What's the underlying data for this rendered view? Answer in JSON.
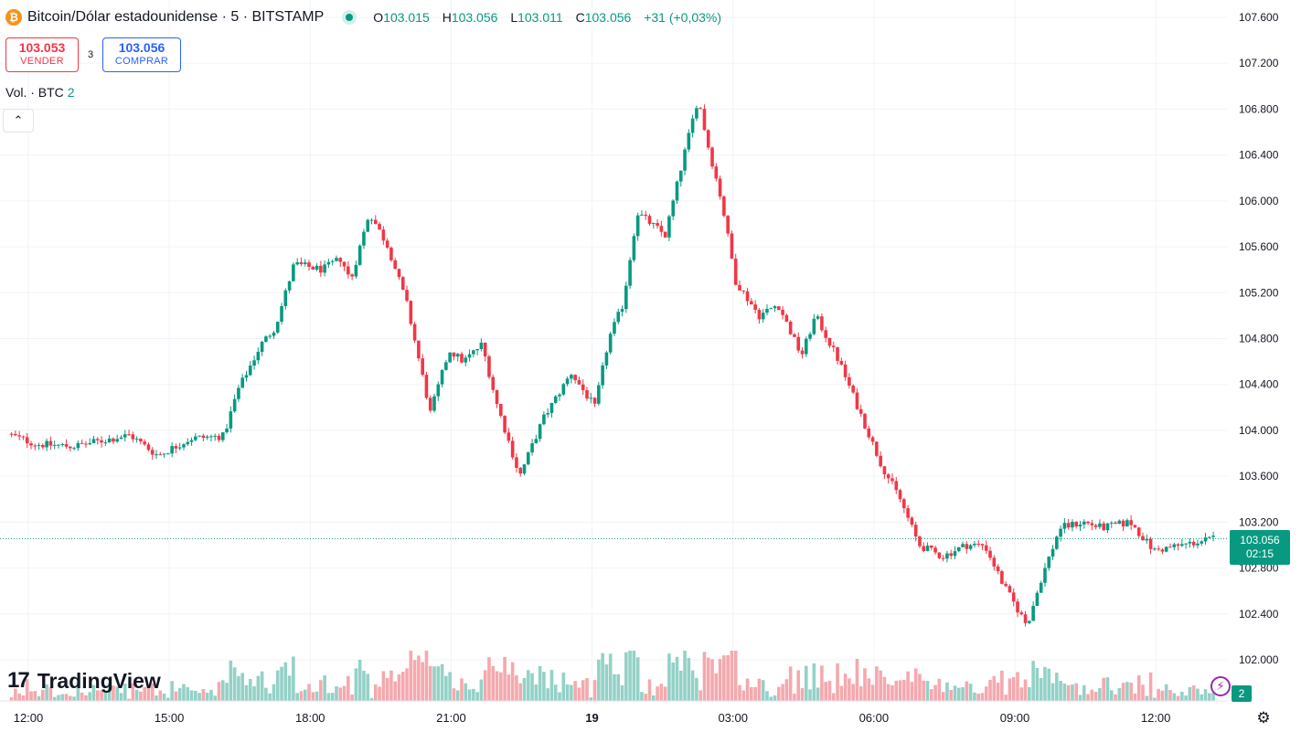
{
  "header": {
    "symbol_title": "Bitcoin/Dólar estadounidense · 5 · BITSTAMP",
    "ohlc": [
      {
        "key": "O",
        "value": "103.015"
      },
      {
        "key": "H",
        "value": "103.056"
      },
      {
        "key": "L",
        "value": "103.011"
      },
      {
        "key": "C",
        "value": "103.056"
      }
    ],
    "change": "+31 (+0,03%)"
  },
  "trade": {
    "sell_price": "103.053",
    "sell_label": "VENDER",
    "spread": "3",
    "buy_price": "103.056",
    "buy_label": "COMPRAR"
  },
  "volume_legend": {
    "label": "Vol. · BTC",
    "value": "2"
  },
  "last_price": {
    "price": "103.056",
    "countdown": "02:15"
  },
  "volume_badge": "2",
  "logo_text": "TradingView",
  "colors": {
    "up": "#089981",
    "down": "#f23645",
    "vol_up": "#94d1c7",
    "vol_down": "#f4a9ae",
    "grid": "#f0f3fa"
  },
  "chart_data": {
    "type": "candlestick",
    "y_ticks": [
      "107.600",
      "107.200",
      "106.800",
      "106.400",
      "106.000",
      "105.600",
      "105.200",
      "104.800",
      "104.400",
      "104.000",
      "103.600",
      "103.200",
      "102.800",
      "102.400",
      "102.000"
    ],
    "y_tick_values": [
      107600,
      107200,
      106800,
      106400,
      106000,
      105600,
      105200,
      104800,
      104400,
      104000,
      103600,
      103200,
      102800,
      102400,
      102000
    ],
    "ylim": [
      101800,
      107800
    ],
    "x_ticks": [
      "12:00",
      "15:00",
      "18:00",
      "21:00",
      "19",
      "03:00",
      "06:00",
      "09:00",
      "12:00"
    ],
    "x_tick_hours": [
      12,
      15,
      18,
      21,
      24,
      27,
      30,
      33,
      36
    ],
    "xlim_hours": [
      11.6,
      37.3
    ],
    "bar_minutes": 5,
    "price_path": [
      {
        "h": 11.6,
        "p": 103970
      },
      {
        "h": 12.2,
        "p": 103880
      },
      {
        "h": 13.0,
        "p": 103860
      },
      {
        "h": 14.2,
        "p": 103960
      },
      {
        "h": 14.8,
        "p": 103780
      },
      {
        "h": 15.5,
        "p": 103930
      },
      {
        "h": 16.2,
        "p": 103950
      },
      {
        "h": 16.5,
        "p": 104350
      },
      {
        "h": 17.0,
        "p": 104750
      },
      {
        "h": 17.3,
        "p": 104900
      },
      {
        "h": 17.7,
        "p": 105450
      },
      {
        "h": 18.3,
        "p": 105400
      },
      {
        "h": 18.7,
        "p": 105500
      },
      {
        "h": 18.9,
        "p": 105300
      },
      {
        "h": 19.3,
        "p": 105900
      },
      {
        "h": 19.7,
        "p": 105600
      },
      {
        "h": 20.1,
        "p": 105100
      },
      {
        "h": 20.6,
        "p": 104150
      },
      {
        "h": 21.0,
        "p": 104700
      },
      {
        "h": 21.3,
        "p": 104600
      },
      {
        "h": 21.7,
        "p": 104750
      },
      {
        "h": 22.0,
        "p": 104250
      },
      {
        "h": 22.5,
        "p": 103600
      },
      {
        "h": 23.0,
        "p": 104100
      },
      {
        "h": 23.6,
        "p": 104500
      },
      {
        "h": 24.1,
        "p": 104200
      },
      {
        "h": 24.4,
        "p": 104800
      },
      {
        "h": 24.7,
        "p": 105100
      },
      {
        "h": 25.0,
        "p": 105900
      },
      {
        "h": 25.6,
        "p": 105700
      },
      {
        "h": 26.0,
        "p": 106400
      },
      {
        "h": 26.3,
        "p": 106900
      },
      {
        "h": 26.5,
        "p": 106500
      },
      {
        "h": 26.8,
        "p": 106000
      },
      {
        "h": 27.1,
        "p": 105300
      },
      {
        "h": 27.6,
        "p": 105000
      },
      {
        "h": 28.0,
        "p": 105100
      },
      {
        "h": 28.5,
        "p": 104650
      },
      {
        "h": 28.8,
        "p": 105000
      },
      {
        "h": 29.3,
        "p": 104600
      },
      {
        "h": 29.8,
        "p": 104100
      },
      {
        "h": 30.2,
        "p": 103700
      },
      {
        "h": 30.6,
        "p": 103400
      },
      {
        "h": 31.0,
        "p": 103000
      },
      {
        "h": 31.5,
        "p": 102900
      },
      {
        "h": 32.0,
        "p": 103000
      },
      {
        "h": 32.4,
        "p": 103000
      },
      {
        "h": 32.8,
        "p": 102650
      },
      {
        "h": 33.3,
        "p": 102300
      },
      {
        "h": 33.6,
        "p": 102700
      },
      {
        "h": 34.0,
        "p": 103150
      },
      {
        "h": 34.5,
        "p": 103200
      },
      {
        "h": 34.9,
        "p": 103150
      },
      {
        "h": 35.5,
        "p": 103200
      },
      {
        "h": 36.0,
        "p": 102950
      },
      {
        "h": 36.6,
        "p": 103000
      },
      {
        "h": 37.3,
        "p": 103056
      }
    ],
    "last_price": 103056
  }
}
